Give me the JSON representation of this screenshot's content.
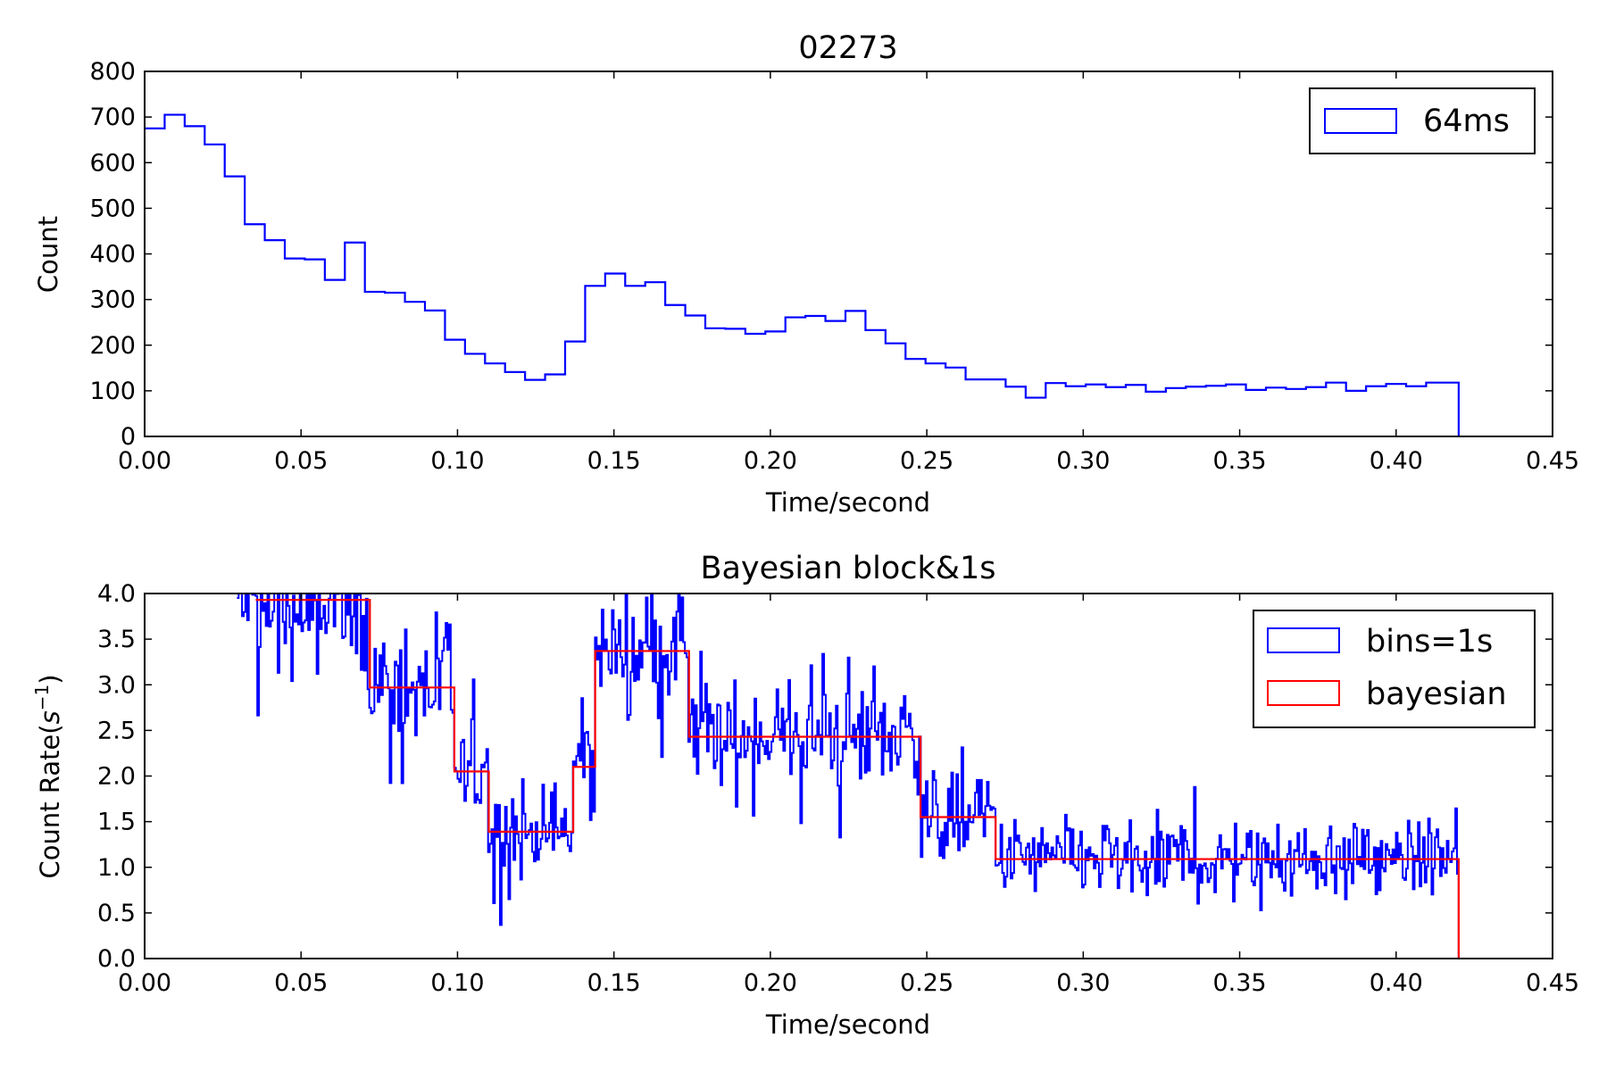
{
  "chart_data": [
    {
      "type": "line",
      "title": "02273",
      "xlabel": "Time/second",
      "ylabel": "Count",
      "xlim": [
        0,
        0.45
      ],
      "ylim": [
        0,
        800
      ],
      "xticks": [
        "0.00",
        "0.05",
        "0.10",
        "0.15",
        "0.20",
        "0.25",
        "0.30",
        "0.35",
        "0.40",
        "0.45"
      ],
      "yticks": [
        "0",
        "100",
        "200",
        "300",
        "400",
        "500",
        "600",
        "700",
        "800"
      ],
      "legend_position": "top-right",
      "series": [
        {
          "name": "64ms",
          "color": "#0000ff",
          "style": "step",
          "bin_edges": [
            0.0,
            0.0064,
            0.0128,
            0.0192,
            0.0256,
            0.032,
            0.0384,
            0.0448,
            0.0512,
            0.0576,
            0.064,
            0.0704,
            0.0768,
            0.0832,
            0.0896,
            0.096,
            0.1024,
            0.1088,
            0.1152,
            0.1216,
            0.128,
            0.1344,
            0.1408,
            0.1472,
            0.1536,
            0.16,
            0.1664,
            0.1728,
            0.1792,
            0.1856,
            0.192,
            0.1984,
            0.2048,
            0.2112,
            0.2176,
            0.224,
            0.2304,
            0.2368,
            0.2432,
            0.2496,
            0.256,
            0.2624,
            0.2688,
            0.2752,
            0.2816,
            0.288,
            0.2944,
            0.3008,
            0.3072,
            0.3136,
            0.32,
            0.3264,
            0.3328,
            0.3392,
            0.3456,
            0.352,
            0.3584,
            0.3648,
            0.3712,
            0.3776,
            0.384,
            0.3904,
            0.3968,
            0.4032,
            0.4096,
            0.416,
            0.42
          ],
          "values": [
            675,
            705,
            680,
            640,
            570,
            465,
            430,
            390,
            388,
            343,
            425,
            317,
            315,
            295,
            276,
            212,
            181,
            160,
            141,
            124,
            136,
            208,
            330,
            357,
            330,
            338,
            288,
            265,
            237,
            236,
            225,
            230,
            261,
            264,
            253,
            275,
            233,
            204,
            170,
            160,
            151,
            125,
            125,
            109,
            85,
            117,
            110,
            114,
            108,
            113,
            98,
            106,
            109,
            111,
            114,
            102,
            107,
            104,
            108,
            118,
            100,
            110,
            115,
            110,
            118,
            118
          ]
        }
      ]
    },
    {
      "type": "line",
      "title": "Bayesian block&1s",
      "xlabel": "Time/second",
      "ylabel": "Count Rate($s^{-1}$)",
      "ylabel_text": "Count Rate(",
      "ylabel_unit_base": "s",
      "ylabel_unit_exp": "−1",
      "ylabel_close": ")",
      "xlim": [
        0,
        0.45
      ],
      "ylim": [
        0,
        4.0
      ],
      "xticks": [
        "0.00",
        "0.05",
        "0.10",
        "0.15",
        "0.20",
        "0.25",
        "0.30",
        "0.35",
        "0.40",
        "0.45"
      ],
      "yticks": [
        "0.0",
        "0.5",
        "1.0",
        "1.5",
        "2.0",
        "2.5",
        "3.0",
        "3.5",
        "4.0"
      ],
      "legend_position": "top-right",
      "series": [
        {
          "name": "bins=1s",
          "color": "#0000ff",
          "style": "step",
          "x_start": 0.0295,
          "x_end": 0.42,
          "segments": [
            {
              "x0": 0.0295,
              "x1": 0.035,
              "mean": 3.9,
              "amp": 0.5
            },
            {
              "x0": 0.035,
              "x1": 0.072,
              "mean": 3.8,
              "amp": 0.6
            },
            {
              "x0": 0.072,
              "x1": 0.099,
              "mean": 3.0,
              "amp": 0.6
            },
            {
              "x0": 0.099,
              "x1": 0.11,
              "mean": 2.0,
              "amp": 0.5
            },
            {
              "x0": 0.11,
              "x1": 0.137,
              "mean": 1.4,
              "amp": 0.45
            },
            {
              "x0": 0.137,
              "x1": 0.144,
              "mean": 2.1,
              "amp": 0.5
            },
            {
              "x0": 0.144,
              "x1": 0.174,
              "mean": 3.4,
              "amp": 0.55
            },
            {
              "x0": 0.174,
              "x1": 0.248,
              "mean": 2.45,
              "amp": 0.55
            },
            {
              "x0": 0.248,
              "x1": 0.272,
              "mean": 1.55,
              "amp": 0.45
            },
            {
              "x0": 0.272,
              "x1": 0.42,
              "mean": 1.1,
              "amp": 0.4
            }
          ]
        },
        {
          "name": "bayesian",
          "color": "#ff0000",
          "style": "step",
          "bin_edges": [
            0.0355,
            0.072,
            0.099,
            0.11,
            0.137,
            0.144,
            0.174,
            0.248,
            0.272,
            0.42
          ],
          "values": [
            3.93,
            2.97,
            2.05,
            1.39,
            2.1,
            3.37,
            2.43,
            1.55,
            1.09
          ]
        }
      ]
    }
  ]
}
